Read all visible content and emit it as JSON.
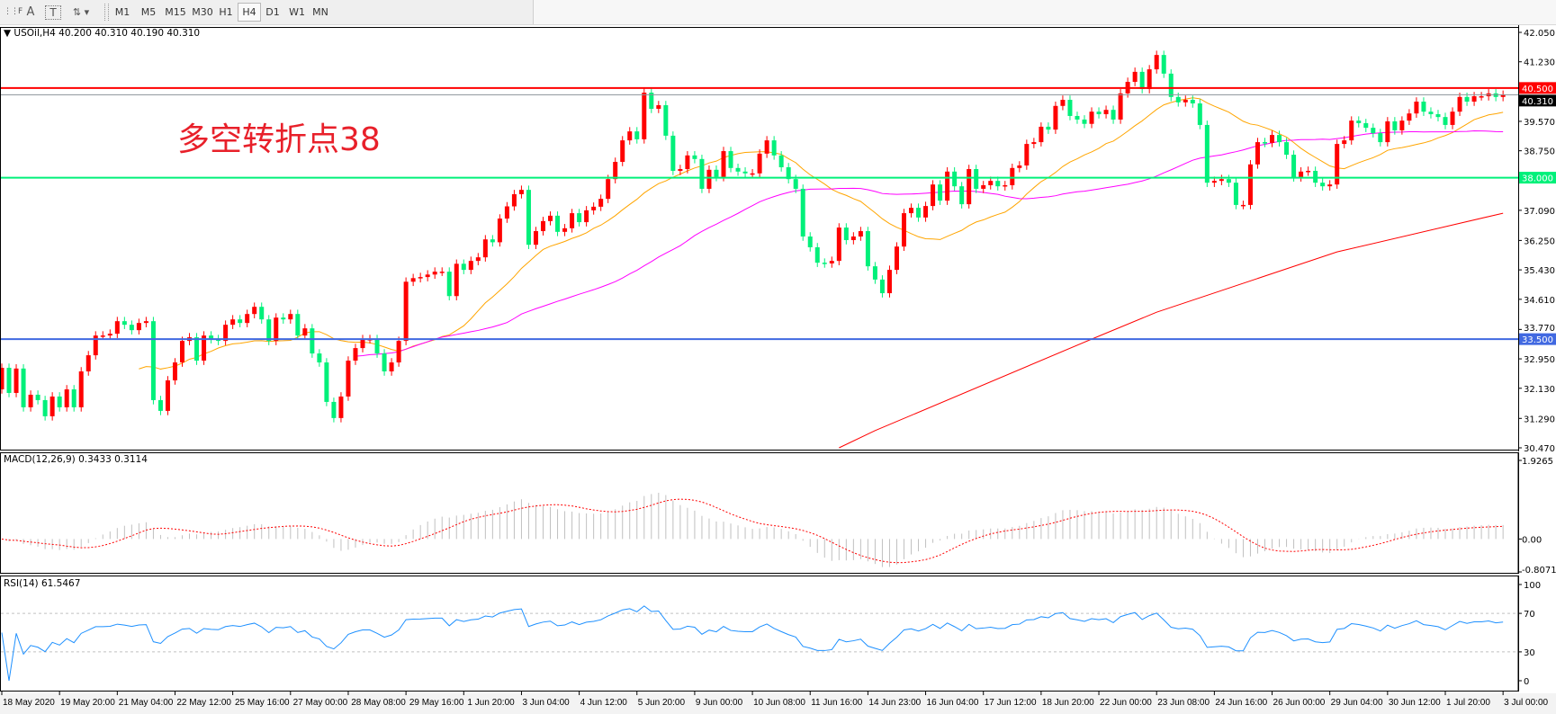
{
  "toolbar": {
    "tools": [
      {
        "icon": "period-separator-grid-icon"
      },
      {
        "icon": "text-tool-icon",
        "label": "A"
      },
      {
        "icon": "text-label-tool-icon",
        "label": "T"
      },
      {
        "icon": "arrows-dropdown-icon"
      }
    ],
    "timeframes": [
      "M1",
      "M5",
      "M15",
      "M30",
      "H1",
      "H4",
      "D1",
      "W1",
      "MN"
    ],
    "active_timeframe": "H4"
  },
  "chart_header": {
    "symbol": "USOil,H4",
    "ohlc": "40.200 40.310 40.190 40.310"
  },
  "annotation": {
    "text": "多空转折点38",
    "color": "#E8202A"
  },
  "chart_data": {
    "type": "candlestick",
    "symbol": "USOil",
    "timeframe": "H4",
    "bullish_color": "#FF0000",
    "bearish_color": "#00F07A",
    "first_open": 32.1,
    "closes": [
      32.7,
      32.0,
      32.68,
      31.6,
      31.95,
      31.8,
      31.35,
      31.9,
      31.6,
      32.1,
      31.6,
      32.6,
      33.05,
      33.6,
      33.6,
      33.65,
      34.0,
      33.9,
      33.75,
      33.95,
      34.0,
      31.8,
      31.5,
      32.35,
      32.85,
      33.45,
      33.55,
      32.9,
      33.6,
      33.5,
      33.45,
      33.9,
      34.05,
      33.95,
      34.2,
      34.4,
      34.05,
      33.45,
      34.1,
      34.05,
      34.2,
      33.6,
      33.8,
      33.1,
      32.85,
      31.75,
      31.3,
      31.9,
      32.9,
      33.25,
      33.5,
      33.5,
      33.1,
      32.6,
      32.85,
      33.45,
      35.1,
      35.2,
      35.23,
      35.3,
      35.38,
      35.38,
      34.7,
      35.6,
      35.43,
      35.68,
      35.78,
      36.28,
      36.2,
      36.86,
      37.2,
      37.54,
      37.66,
      36.13,
      36.51,
      36.79,
      36.94,
      36.49,
      36.59,
      37.01,
      36.76,
      37.09,
      37.19,
      37.41,
      37.96,
      38.44,
      39.04,
      39.29,
      39.07,
      40.37,
      39.92,
      40.02,
      39.17,
      38.19,
      38.24,
      38.62,
      38.52,
      37.69,
      38.22,
      38.02,
      38.74,
      38.27,
      38.17,
      38.12,
      38.12,
      38.67,
      39.04,
      38.62,
      38.29,
      37.96,
      37.69,
      36.36,
      36.06,
      35.63,
      35.61,
      35.68,
      36.61,
      36.26,
      36.36,
      36.51,
      35.53,
      35.16,
      34.78,
      35.43,
      36.08,
      37.01,
      37.16,
      36.89,
      37.21,
      37.81,
      37.36,
      38.17,
      37.76,
      37.26,
      38.24,
      37.69,
      37.79,
      37.91,
      37.76,
      37.79,
      38.27,
      38.34,
      38.94,
      38.99,
      39.42,
      39.34,
      40.0,
      40.17,
      39.72,
      39.62,
      39.5,
      39.84,
      39.77,
      39.89,
      39.62,
      40.35,
      40.67,
      40.95,
      40.47,
      41.02,
      41.42,
      40.9,
      40.25,
      40.1,
      40.17,
      40.07,
      39.47,
      37.86,
      37.91,
      37.96,
      37.86,
      37.24,
      37.24,
      38.37,
      38.99,
      38.97,
      39.19,
      38.99,
      38.64,
      38.01,
      38.17,
      38.19,
      37.86,
      37.76,
      37.81,
      38.94,
      39.04,
      39.59,
      39.52,
      39.39,
      39.24,
      38.99,
      39.57,
      39.32,
      39.59,
      39.79,
      40.12,
      39.84,
      39.77,
      39.69,
      39.47,
      39.84,
      40.25,
      40.12,
      40.27,
      40.27,
      40.35,
      40.25,
      40.31
    ],
    "moving_averages": [
      {
        "color": "#FFA500",
        "period": 20
      },
      {
        "color": "#FF00FF",
        "period": 50
      },
      {
        "color": "#FF0000",
        "points": [
          [
            116,
            30.47
          ],
          [
            121,
            30.95
          ],
          [
            151,
            33.5
          ],
          [
            160,
            34.25
          ],
          [
            185,
            35.93
          ],
          [
            208,
            37.01
          ]
        ]
      }
    ],
    "levels": [
      {
        "value": 40.5,
        "label": "40.500",
        "color": "#FF0000"
      },
      {
        "value": 40.31,
        "label": "40.310",
        "color": "#000000",
        "line_color": "#8C9399"
      },
      {
        "value": 38.0,
        "label": "38.000",
        "color": "#00F07A"
      },
      {
        "value": 33.5,
        "label": "33.500",
        "color": "#4169E1"
      }
    ],
    "price_axis": {
      "range": [
        30.47,
        42.05
      ],
      "ticks": [
        "42.050",
        "41.230",
        "39.570",
        "38.750",
        "37.090",
        "36.250",
        "35.430",
        "34.610",
        "33.770",
        "32.950",
        "32.130",
        "31.290",
        "30.470"
      ]
    },
    "time_axis": {
      "labels": [
        "18 May 2020",
        "19 May 20:00",
        "21 May 04:00",
        "22 May 12:00",
        "25 May 16:00",
        "27 May 00:00",
        "28 May 08:00",
        "29 May 16:00",
        "1 Jun 20:00",
        "3 Jun 04:00",
        "4 Jun 12:00",
        "5 Jun 20:00",
        "9 Jun 00:00",
        "10 Jun 08:00",
        "11 Jun 16:00",
        "14 Jun 23:00",
        "16 Jun 04:00",
        "17 Jun 12:00",
        "18 Jun 20:00",
        "22 Jun 00:00",
        "23 Jun 08:00",
        "24 Jun 16:00",
        "26 Jun 00:00",
        "29 Jun 04:00",
        "30 Jun 12:00",
        "1 Jul 20:00",
        "3 Jul 00:00"
      ]
    },
    "macd": {
      "label": "MACD(12,26,9) 0.3433 0.3114",
      "fast": 12,
      "slow": 26,
      "signal": 9,
      "range": [
        -0.8071,
        1.9265
      ],
      "ticks": [
        "1.9265",
        "0.00",
        "-0.8071"
      ],
      "histogram_color": "#C0C0C0",
      "signal_color": "#FF0000"
    },
    "rsi": {
      "label": "RSI(14) 61.5467",
      "period": 14,
      "range": [
        0,
        100
      ],
      "levels": [
        70,
        30
      ],
      "ticks": [
        "100",
        "70",
        "30",
        "0"
      ],
      "color": "#1E90FF"
    }
  }
}
